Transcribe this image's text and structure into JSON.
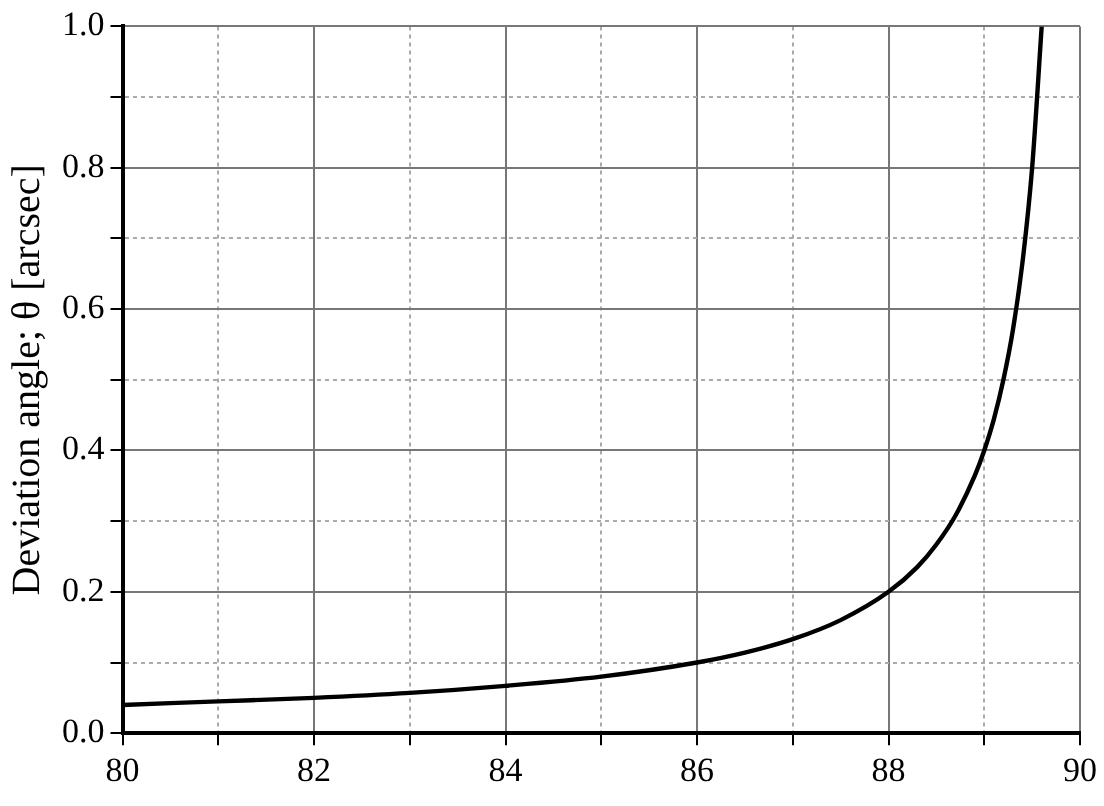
{
  "chart_data": {
    "type": "line",
    "ylabel": "Deviation angle; θ [arcsec]",
    "x": [
      80,
      81,
      82,
      83,
      84,
      85,
      86,
      86.5,
      87,
      87.5,
      88,
      88.3,
      88.5,
      88.7,
      88.9,
      89,
      89.1,
      89.2,
      89.3,
      89.4,
      89.5,
      89.6
    ],
    "series": [
      {
        "color": "#000000",
        "values": [
          0.04,
          0.045,
          0.05,
          0.057,
          0.067,
          0.08,
          0.1,
          0.114,
          0.133,
          0.16,
          0.2,
          0.235,
          0.267,
          0.308,
          0.364,
          0.4,
          0.444,
          0.5,
          0.571,
          0.667,
          0.8,
          1.0
        ]
      }
    ],
    "xlim": [
      80,
      90
    ],
    "xticks": [
      80,
      {
        "value": 81,
        "label": null
      },
      82,
      {
        "value": 83,
        "label": null
      },
      84,
      {
        "value": 85,
        "label": null
      },
      86,
      {
        "value": 87,
        "label": null
      },
      88,
      {
        "value": 89,
        "label": null
      },
      90
    ],
    "ylim": [
      0,
      1
    ],
    "yticks": [
      "0.0",
      {
        "value": 0.1,
        "label": null
      },
      {
        "value": 0.2,
        "label": "0.2"
      },
      {
        "value": 0.3,
        "label": null
      },
      {
        "value": 0.4,
        "label": "0.4"
      },
      {
        "value": 0.5,
        "label": null
      },
      {
        "value": 0.6,
        "label": "0.6"
      },
      {
        "value": 0.7,
        "label": null
      },
      {
        "value": 0.8,
        "label": "0.8"
      },
      {
        "value": 0.9,
        "label": null
      },
      {
        "value": 1,
        "label": "1.0"
      }
    ],
    "grid": true,
    "legend": false,
    "marker": "none",
    "line_style": "solid"
  }
}
